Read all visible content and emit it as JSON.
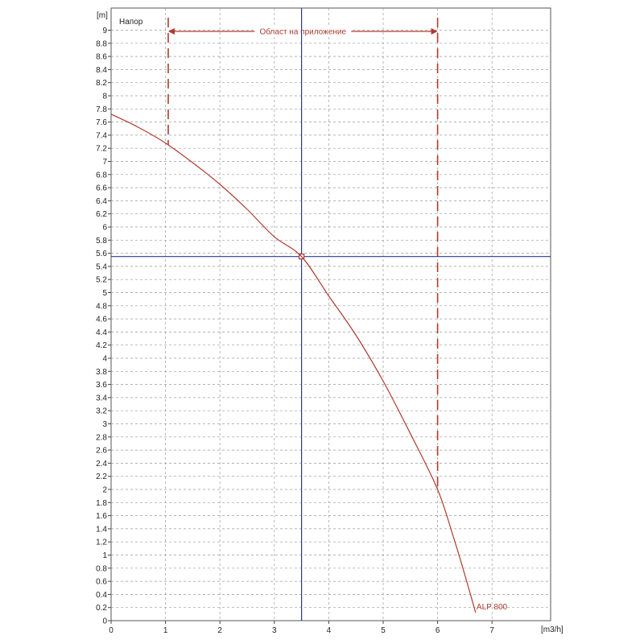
{
  "chart_data": {
    "type": "line",
    "title": "Напор",
    "xlabel": "[m3/h]",
    "ylabel": "[m]",
    "xlim": [
      0,
      8.1
    ],
    "ylim": [
      0,
      9.2
    ],
    "x_ticks": [
      0,
      1,
      2,
      3,
      4,
      5,
      6,
      7
    ],
    "y_ticks": [
      0,
      0.2,
      0.4,
      0.6,
      0.8,
      1,
      1.2,
      1.4,
      1.6,
      1.8,
      2,
      2.2,
      2.4,
      2.6,
      2.8,
      3,
      3.2,
      3.4,
      3.6,
      3.8,
      4,
      4.2,
      4.4,
      4.6,
      4.8,
      5,
      5.2,
      5.4,
      5.6,
      5.8,
      6,
      6.2,
      6.4,
      6.6,
      6.8,
      7,
      7.2,
      7.4,
      7.6,
      7.8,
      8,
      8.2,
      8.4,
      8.6,
      8.8,
      9
    ],
    "grid": true,
    "series": [
      {
        "name": "ALP 800",
        "color": "#b03a2e",
        "x": [
          0,
          0.5,
          1.0,
          1.5,
          2.0,
          2.5,
          3.0,
          3.5,
          4.0,
          4.5,
          5.0,
          5.5,
          6.0,
          6.3,
          6.5,
          6.7
        ],
        "y": [
          7.72,
          7.52,
          7.28,
          6.98,
          6.65,
          6.27,
          5.85,
          5.55,
          4.95,
          4.35,
          3.65,
          2.85,
          2.0,
          1.25,
          0.7,
          0.12
        ]
      }
    ],
    "operating_point": {
      "x": 3.5,
      "y": 5.55,
      "line_color": "#2b3a8f"
    },
    "application_range": {
      "label": "Област на приложение",
      "x_from": 1.05,
      "x_to": 6.0,
      "color": "#b03a2e"
    }
  }
}
